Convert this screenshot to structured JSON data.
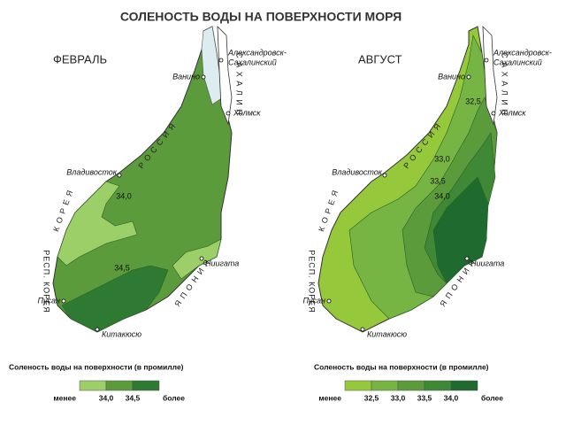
{
  "title": "СОЛЕНОСТЬ ВОДЫ НА ПОВЕРХНОСТИ МОРЯ",
  "maps": [
    {
      "month": "ФЕВРАЛЬ",
      "isoline_labels": [
        "34,0",
        "34,5"
      ],
      "legend": {
        "title": "Соленость воды на поверхности (в промилле)",
        "labels": [
          "менее",
          "34,0",
          "34,5",
          "более"
        ],
        "colors": [
          "#9ccf68",
          "#5b9b3c",
          "#2e7a33"
        ]
      }
    },
    {
      "month": "АВГУСТ",
      "isoline_labels": [
        "32,5",
        "33,0",
        "33,5",
        "34,0"
      ],
      "legend": {
        "title": "Соленость воды на поверхности (в промилле)",
        "labels": [
          "менее",
          "32,5",
          "33,0",
          "33,5",
          "34,0",
          "более"
        ],
        "colors": [
          "#95c93b",
          "#76b443",
          "#5b9b3c",
          "#3e8836",
          "#1f6a2f"
        ]
      }
    }
  ],
  "places": [
    {
      "name": [
        "Александровск-",
        "Сахалинский"
      ]
    },
    {
      "name": [
        "Ванино"
      ]
    },
    {
      "name": [
        "Холмск"
      ]
    },
    {
      "name": [
        "Владивосток"
      ]
    },
    {
      "name": [
        "Ниигата"
      ]
    },
    {
      "name": [
        "Пусан"
      ]
    },
    {
      "name": [
        "Китакюсю"
      ]
    }
  ],
  "regions": [
    "Р О С С И Я",
    "С А Х А Л И Н",
    "К О Р Е Я",
    "РЕСП. КОРЕЯ",
    "Я П О Н И Я"
  ]
}
